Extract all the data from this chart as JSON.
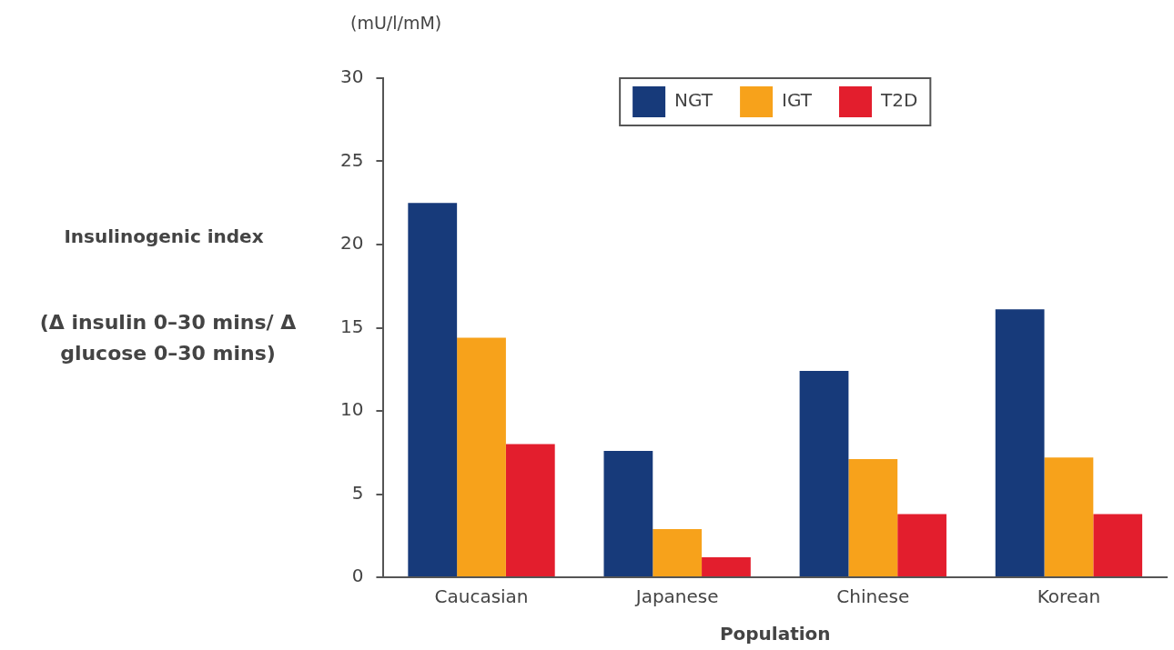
{
  "chart_data": {
    "type": "bar",
    "xlabel": "Population",
    "ylabel": "Insulinogenic index",
    "annotations": [
      "(Δ insulin 0–30 mins/ Δ glucose 0–30 mins)",
      "(mU/l/mM)"
    ],
    "categories": [
      "Caucasian",
      "Japanese",
      "Chinese",
      "Korean"
    ],
    "series": [
      {
        "name": "NGT",
        "color": "#173a7a",
        "values": [
          22.5,
          7.6,
          12.4,
          16.1
        ]
      },
      {
        "name": "IGT",
        "color": "#f7a21b",
        "values": [
          14.4,
          2.9,
          7.1,
          7.2
        ]
      },
      {
        "name": "T2D",
        "color": "#e31e2d",
        "values": [
          8.0,
          1.2,
          3.8,
          3.8
        ]
      }
    ],
    "ylim": [
      0,
      30
    ],
    "yticks": [
      0,
      5,
      10,
      15,
      20,
      25,
      30
    ],
    "grid": false,
    "legend": "top"
  }
}
